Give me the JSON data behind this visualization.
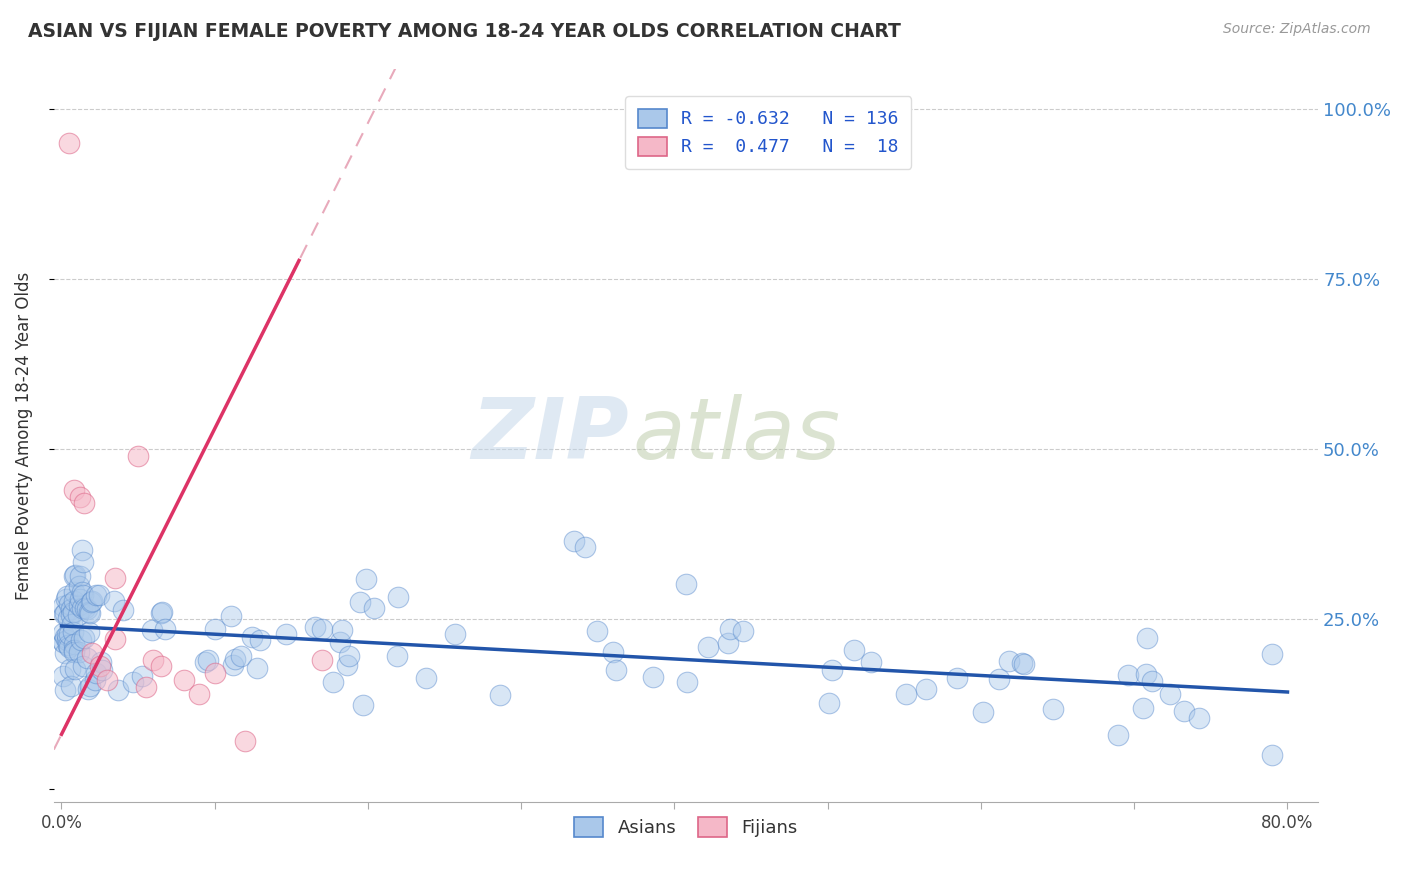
{
  "title": "ASIAN VS FIJIAN FEMALE POVERTY AMONG 18-24 YEAR OLDS CORRELATION CHART",
  "source": "Source: ZipAtlas.com",
  "ylabel": "Female Poverty Among 18-24 Year Olds",
  "xlim": [
    -0.005,
    0.82
  ],
  "ylim": [
    -0.02,
    1.06
  ],
  "xticks": [
    0.0,
    0.1,
    0.2,
    0.3,
    0.4,
    0.5,
    0.6,
    0.7,
    0.8
  ],
  "xticklabels": [
    "0.0%",
    "",
    "",
    "",
    "",
    "",
    "",
    "",
    "80.0%"
  ],
  "yticks_right": [
    0.25,
    0.5,
    0.75,
    1.0
  ],
  "yticklabels_right": [
    "25.0%",
    "50.0%",
    "75.0%",
    "100.0%"
  ],
  "asian_color": "#aac8ea",
  "asian_edge": "#5588cc",
  "fijian_color": "#f5b8c8",
  "fijian_edge": "#dd6688",
  "asian_line_color": "#2255aa",
  "fijian_line_color": "#dd3366",
  "fijian_dash_color": "#e8aabb",
  "watermark_zip": "ZIP",
  "watermark_atlas": "atlas",
  "watermark_color_zip": "#c5d8ea",
  "watermark_color_atlas": "#b8c8a8",
  "legend_text_color": "#2255cc",
  "background_color": "#ffffff",
  "grid_color": "#cccccc"
}
